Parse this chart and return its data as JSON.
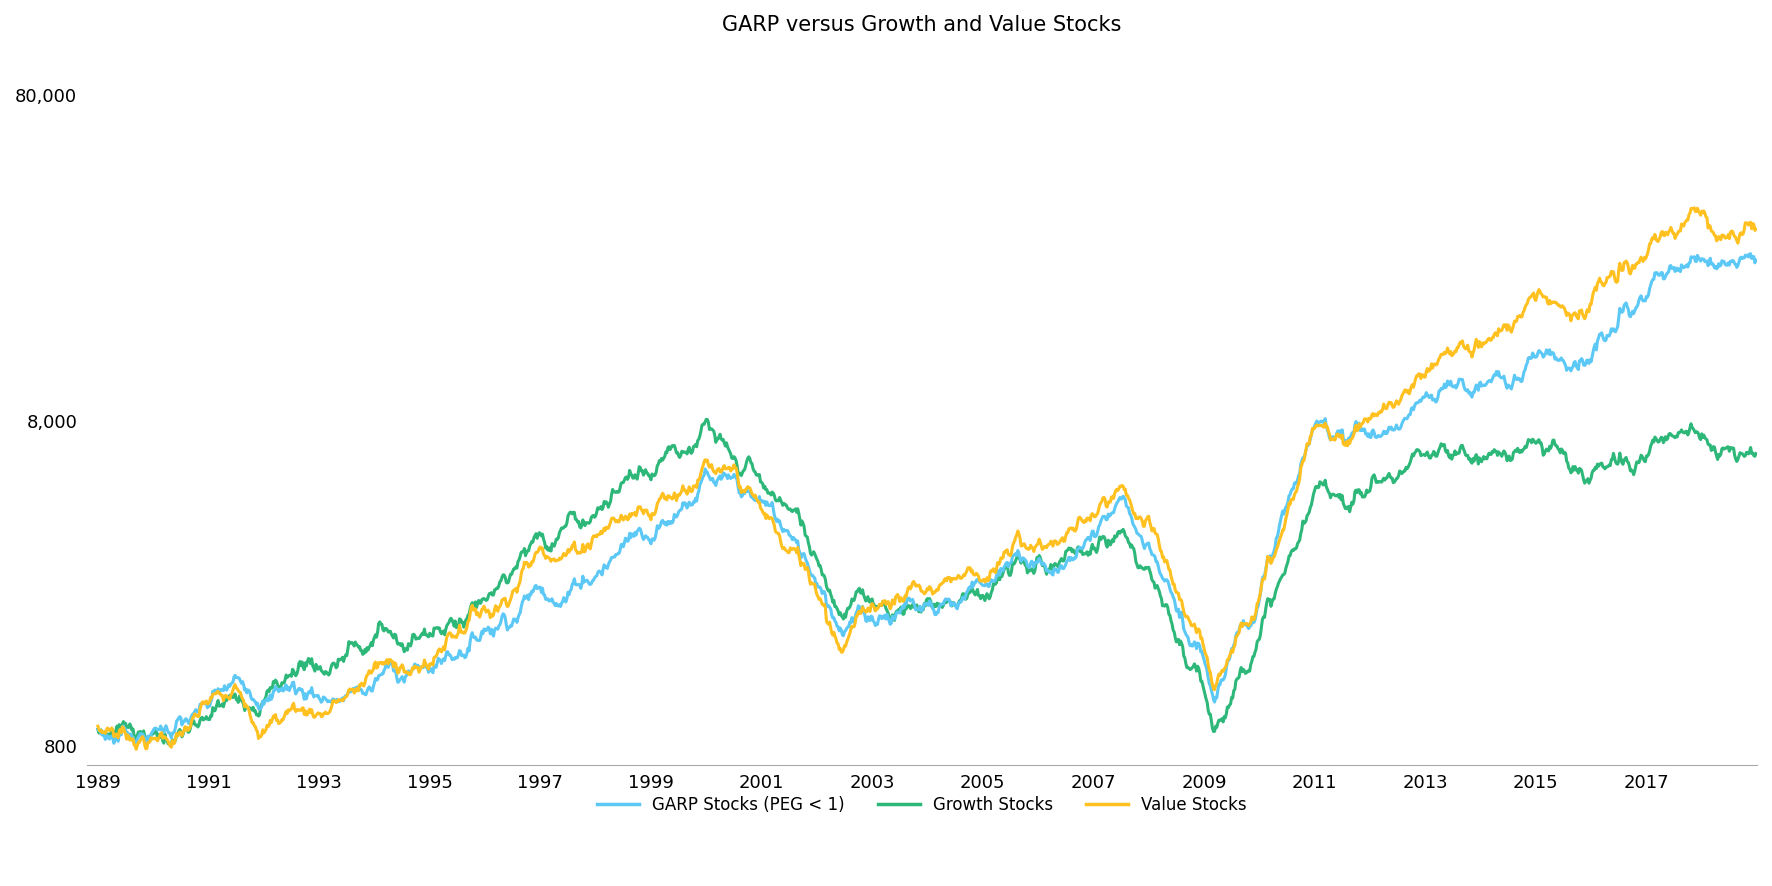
{
  "title": "GARP versus Growth and Value Stocks",
  "title_fontsize": 15,
  "garp_color": "#5BC8F5",
  "growth_color": "#2DB87A",
  "value_color": "#FFC020",
  "line_width": 2.2,
  "ylim_log": [
    700,
    110000
  ],
  "yticks": [
    800,
    8000,
    80000
  ],
  "ytick_labels": [
    "800",
    "8,000",
    "80,000"
  ],
  "xticks": [
    1989,
    1991,
    1993,
    1995,
    1997,
    1999,
    2001,
    2003,
    2005,
    2007,
    2009,
    2011,
    2013,
    2015,
    2017
  ],
  "background_color": "#ffffff",
  "legend_labels": [
    "GARP Stocks (PEG < 1)",
    "Growth Stocks",
    "Value Stocks"
  ],
  "legend_fontsize": 12,
  "tick_fontsize": 13,
  "start_year": 1989,
  "n_points": 1560
}
